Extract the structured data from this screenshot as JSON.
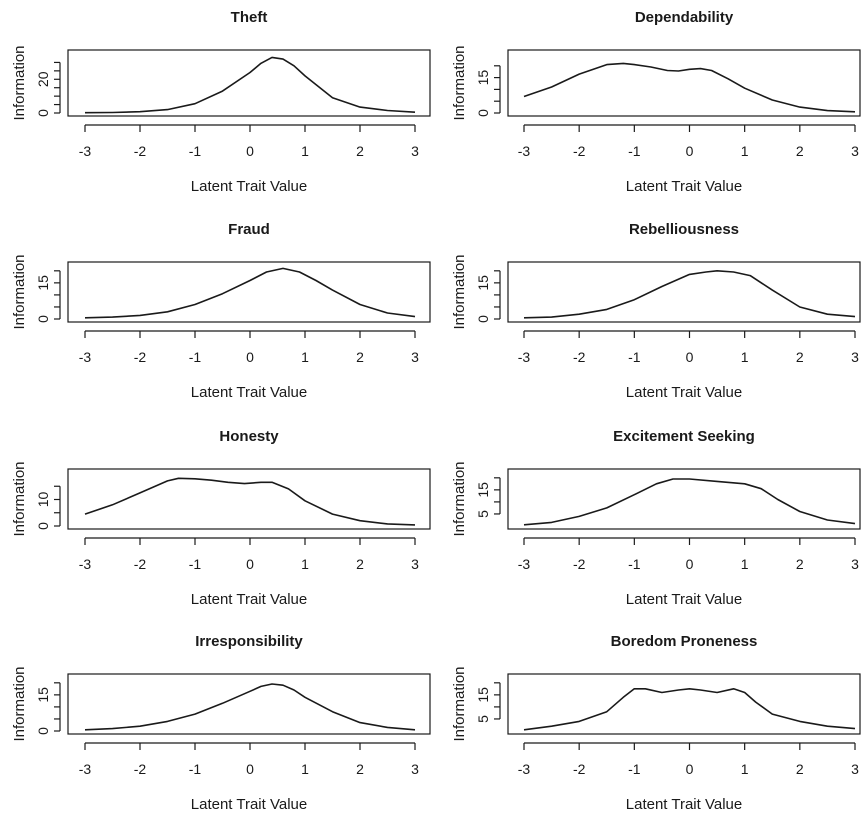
{
  "chart_data": [
    {
      "type": "line",
      "title": "Theft",
      "xlabel": "Latent Trait Value",
      "ylabel": "Information",
      "xlim": [
        -3,
        3
      ],
      "ylim": [
        0,
        35
      ],
      "xticks": [
        -3,
        -2,
        -1,
        0,
        1,
        2,
        3
      ],
      "yticks": [
        0,
        20
      ],
      "yminor": [
        5,
        10,
        15,
        25,
        30
      ],
      "series": [
        {
          "x": [
            -3,
            -2.5,
            -2,
            -1.5,
            -1,
            -0.5,
            0,
            0.2,
            0.4,
            0.6,
            0.8,
            1,
            1.5,
            2,
            2.5,
            3
          ],
          "y": [
            0.2,
            0.3,
            0.8,
            2,
            5.5,
            13,
            24,
            29.5,
            33,
            32,
            28,
            22,
            9,
            3.5,
            1.5,
            0.5
          ]
        }
      ]
    },
    {
      "type": "line",
      "title": "Dependability",
      "xlabel": "Latent Trait Value",
      "ylabel": "Information",
      "xlim": [
        -3,
        3
      ],
      "ylim": [
        0,
        25
      ],
      "xticks": [
        -3,
        -2,
        -1,
        0,
        1,
        2,
        3
      ],
      "yticks": [
        0,
        15
      ],
      "yminor": [
        5,
        10,
        20
      ],
      "series": [
        {
          "x": [
            -3,
            -2.5,
            -2,
            -1.5,
            -1.2,
            -1,
            -0.7,
            -0.4,
            -0.2,
            0,
            0.2,
            0.4,
            0.7,
            1,
            1.5,
            2,
            2.5,
            3
          ],
          "y": [
            7,
            11,
            16.5,
            20.5,
            21,
            20.5,
            19.5,
            18,
            17.8,
            18.5,
            18.8,
            18,
            14.5,
            10.5,
            5.5,
            2.5,
            1,
            0.5
          ]
        }
      ]
    },
    {
      "type": "line",
      "title": "Fraud",
      "xlabel": "Latent Trait Value",
      "ylabel": "Information",
      "xlim": [
        -3,
        3
      ],
      "ylim": [
        0,
        22
      ],
      "xticks": [
        -3,
        -2,
        -1,
        0,
        1,
        2,
        3
      ],
      "yticks": [
        0,
        15
      ],
      "yminor": [
        5,
        10,
        20
      ],
      "series": [
        {
          "x": [
            -3,
            -2.5,
            -2,
            -1.5,
            -1,
            -0.5,
            0,
            0.3,
            0.6,
            0.9,
            1.2,
            1.5,
            2,
            2.5,
            3
          ],
          "y": [
            0.5,
            0.8,
            1.5,
            3,
            6,
            10.5,
            16,
            19.5,
            21,
            19.5,
            16,
            12,
            6,
            2.5,
            1
          ]
        }
      ]
    },
    {
      "type": "line",
      "title": "Rebelliousness",
      "xlabel": "Latent Trait Value",
      "ylabel": "Information",
      "xlim": [
        -3,
        3
      ],
      "ylim": [
        0,
        22
      ],
      "xticks": [
        -3,
        -2,
        -1,
        0,
        1,
        2,
        3
      ],
      "yticks": [
        0,
        15
      ],
      "yminor": [
        5,
        10,
        20
      ],
      "series": [
        {
          "x": [
            -3,
            -2.5,
            -2,
            -1.5,
            -1,
            -0.5,
            0,
            0.3,
            0.5,
            0.8,
            1.1,
            1.5,
            2,
            2.5,
            3
          ],
          "y": [
            0.5,
            0.8,
            2,
            4,
            8,
            13.5,
            18.5,
            19.5,
            20,
            19.5,
            18,
            12,
            5,
            2,
            1
          ]
        }
      ]
    },
    {
      "type": "line",
      "title": "Honesty",
      "xlabel": "Latent Trait Value",
      "ylabel": "Information",
      "xlim": [
        -3,
        3
      ],
      "ylim": [
        0,
        20
      ],
      "xticks": [
        -3,
        -2,
        -1,
        0,
        1,
        2,
        3
      ],
      "yticks": [
        0,
        10
      ],
      "yminor": [
        5,
        15
      ],
      "series": [
        {
          "x": [
            -3,
            -2.5,
            -2,
            -1.5,
            -1.3,
            -1,
            -0.7,
            -0.4,
            -0.1,
            0.2,
            0.4,
            0.7,
            1,
            1.5,
            2,
            2.5,
            3
          ],
          "y": [
            4.5,
            8,
            12.5,
            17,
            18,
            17.8,
            17.3,
            16.5,
            16,
            16.5,
            16.5,
            14,
            9.5,
            4.5,
            2,
            0.8,
            0.4
          ]
        }
      ]
    },
    {
      "type": "line",
      "title": "Excitement Seeking",
      "xlabel": "Latent Trait Value",
      "ylabel": "Information",
      "xlim": [
        -3,
        3
      ],
      "ylim": [
        0,
        22
      ],
      "xticks": [
        -3,
        -2,
        -1,
        0,
        1,
        2,
        3
      ],
      "yticks": [
        5,
        15
      ],
      "yminor": [
        10,
        20
      ],
      "series": [
        {
          "x": [
            -3,
            -2.5,
            -2,
            -1.5,
            -1,
            -0.6,
            -0.3,
            0,
            0.5,
            1,
            1.3,
            1.6,
            2,
            2.5,
            3
          ],
          "y": [
            0.5,
            1.5,
            4,
            7.5,
            13,
            17.5,
            19.5,
            19.5,
            18.5,
            17.5,
            15.5,
            11,
            6,
            2.5,
            1
          ]
        }
      ]
    },
    {
      "type": "line",
      "title": "Irresponsibility",
      "xlabel": "Latent Trait Value",
      "ylabel": "Information",
      "xlim": [
        -3,
        3
      ],
      "ylim": [
        0,
        22
      ],
      "xticks": [
        -3,
        -2,
        -1,
        0,
        1,
        2,
        3
      ],
      "yticks": [
        0,
        15
      ],
      "yminor": [
        5,
        10,
        20
      ],
      "series": [
        {
          "x": [
            -3,
            -2.5,
            -2,
            -1.5,
            -1,
            -0.5,
            0,
            0.2,
            0.4,
            0.6,
            0.8,
            1,
            1.5,
            2,
            2.5,
            3
          ],
          "y": [
            0.5,
            1,
            2,
            4,
            7,
            11.5,
            16.5,
            18.5,
            19.5,
            19,
            17,
            14,
            8,
            3.5,
            1.5,
            0.5
          ]
        }
      ]
    },
    {
      "type": "line",
      "title": "Boredom Proneness",
      "xlabel": "Latent Trait Value",
      "ylabel": "Information",
      "xlim": [
        -3,
        3
      ],
      "ylim": [
        0,
        22
      ],
      "xticks": [
        -3,
        -2,
        -1,
        0,
        1,
        2,
        3
      ],
      "yticks": [
        5,
        15
      ],
      "yminor": [
        10,
        20
      ],
      "series": [
        {
          "x": [
            -3,
            -2.5,
            -2,
            -1.5,
            -1.2,
            -1,
            -0.8,
            -0.5,
            -0.2,
            0,
            0.2,
            0.5,
            0.8,
            1,
            1.2,
            1.5,
            2,
            2.5,
            3
          ],
          "y": [
            0.5,
            2,
            4,
            8,
            14,
            17.5,
            17.5,
            16,
            17,
            17.5,
            17,
            16,
            17.5,
            16,
            12,
            7,
            4,
            2,
            1
          ]
        }
      ]
    }
  ]
}
